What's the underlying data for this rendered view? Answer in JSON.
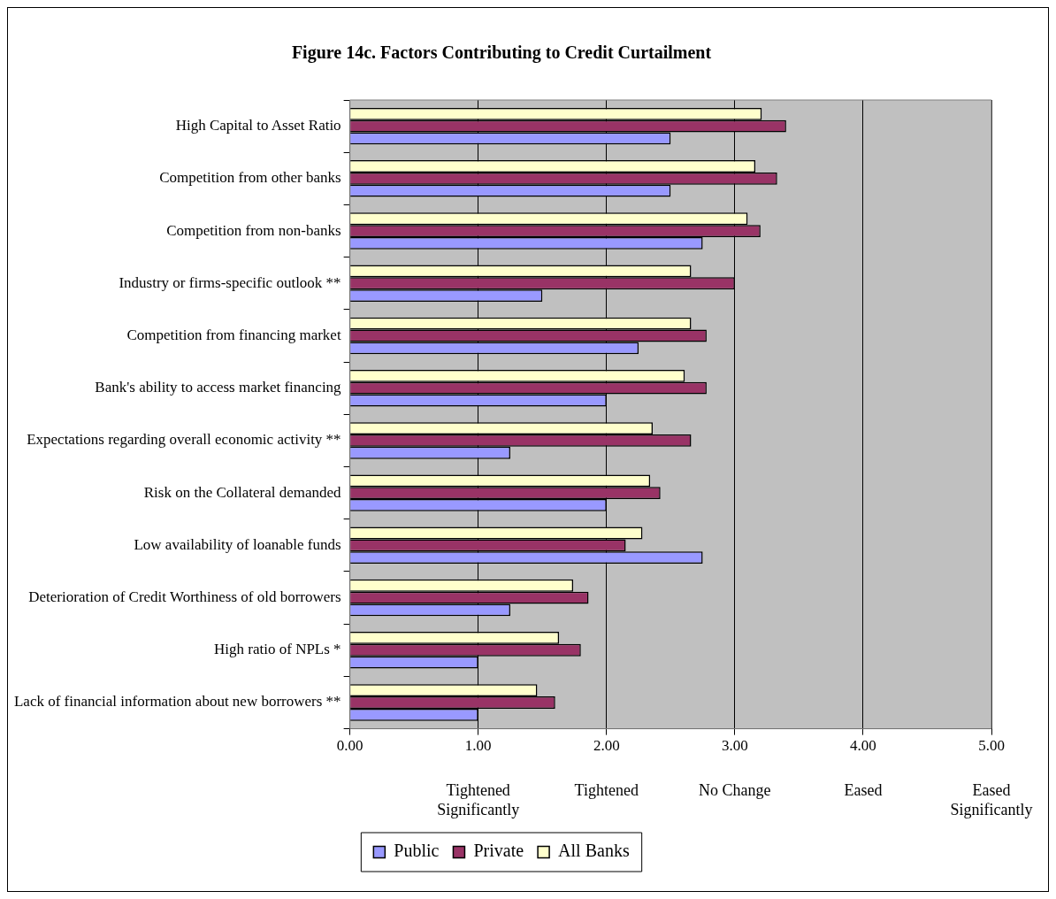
{
  "chart_data": {
    "type": "bar",
    "orientation": "horizontal",
    "title": "Figure 14c. Factors Contributing to Credit Curtailment",
    "categories": [
      "High Capital to Asset Ratio",
      "Competition from other banks",
      "Competition from non-banks",
      "Industry or firms-specific outlook **",
      "Competition from financing market",
      "Bank's ability to access market financing",
      "Expectations regarding overall economic activity **",
      "Risk on the Collateral demanded",
      "Low availability of loanable funds",
      "Deterioration of Credit Worthiness of old borrowers",
      "High ratio of NPLs *",
      "Lack of financial information about new borrowers **"
    ],
    "series": [
      {
        "name": "Public",
        "color": "#9999ff",
        "values": [
          2.5,
          2.5,
          2.75,
          1.5,
          2.25,
          2.0,
          1.25,
          2.0,
          2.75,
          1.25,
          1.0,
          1.0
        ]
      },
      {
        "name": "Private",
        "color": "#993366",
        "values": [
          3.4,
          3.33,
          3.2,
          3.0,
          2.78,
          2.78,
          2.66,
          2.42,
          2.15,
          1.86,
          1.8,
          1.6
        ]
      },
      {
        "name": "All Banks",
        "color": "#ffffcc",
        "values": [
          3.21,
          3.16,
          3.1,
          2.66,
          2.66,
          2.61,
          2.36,
          2.34,
          2.28,
          1.74,
          1.63,
          1.46
        ]
      }
    ],
    "xlim": [
      0,
      5
    ],
    "xticks": [
      {
        "value": 0,
        "label": "0.00"
      },
      {
        "value": 1,
        "label": "1.00"
      },
      {
        "value": 2,
        "label": "2.00"
      },
      {
        "value": 3,
        "label": "3.00"
      },
      {
        "value": 4,
        "label": "4.00"
      },
      {
        "value": 5,
        "label": "5.00"
      }
    ],
    "annotations": [
      "Tightened Significantly",
      "Tightened",
      "No Change",
      "Eased",
      "Eased Significantly"
    ],
    "grid": "x",
    "legend": "bottom"
  }
}
